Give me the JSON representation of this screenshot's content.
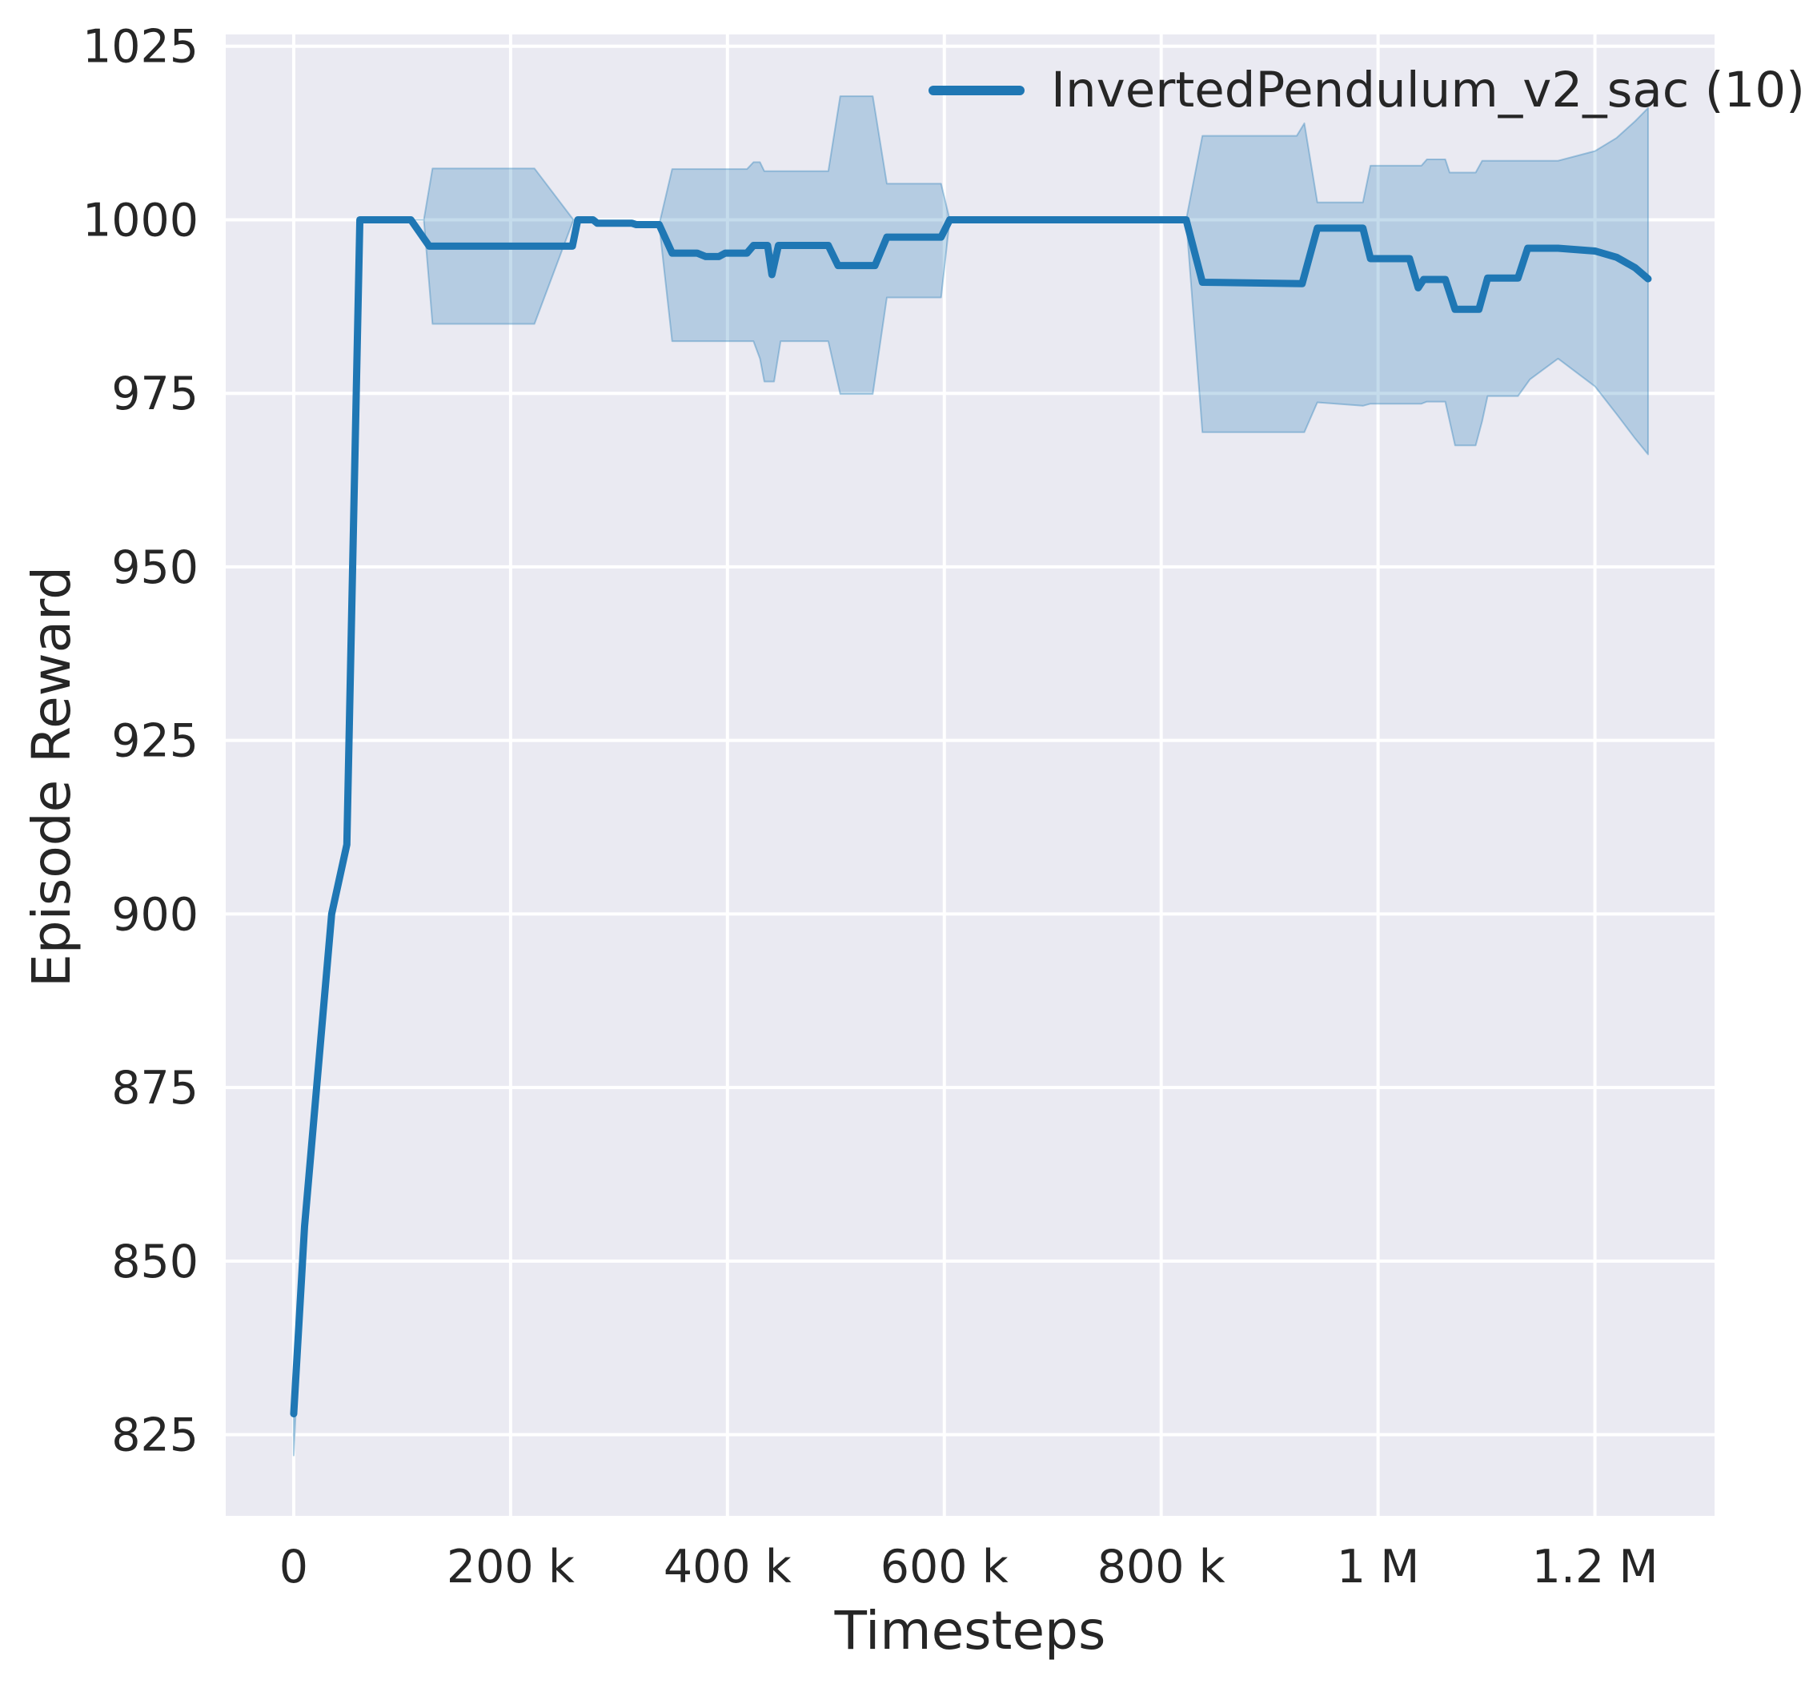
{
  "chart_data": {
    "type": "line",
    "xlabel": "Timesteps",
    "ylabel": "Episode Reward",
    "legend_position": "upper right",
    "grid": true,
    "xlim": [
      -62700,
      1310300
    ],
    "ylim": [
      813.3,
      1026.7
    ],
    "xticks": {
      "values": [
        0,
        200000,
        400000,
        600000,
        800000,
        1000000,
        1200000
      ],
      "labels": [
        "0",
        "200 k",
        "400 k",
        "600 k",
        "800 k",
        "1 M",
        "1.2 M"
      ]
    },
    "yticks": {
      "values": [
        825,
        850,
        875,
        900,
        925,
        950,
        975,
        1000,
        1025
      ],
      "labels": [
        "825",
        "850",
        "875",
        "900",
        "925",
        "950",
        "975",
        "1000",
        "1025"
      ]
    },
    "colors": {
      "plot_bg": "#eaeaf2",
      "grid": "#ffffff",
      "text": "#262626",
      "accent": "#1f77b4"
    },
    "legend": [
      {
        "label": "InvertedPendulum_v2_sac (10)",
        "color": "#1f77b4"
      }
    ],
    "series": [
      {
        "name": "InvertedPendulum_v2_sac (10)",
        "color": "#1f77b4",
        "x": [
          0,
          10000,
          25000,
          35000,
          49000,
          61000,
          108000,
          125000,
          257000,
          262000,
          276000,
          280000,
          312000,
          316000,
          337000,
          349000,
          372000,
          380000,
          392000,
          398000,
          418000,
          424000,
          437000,
          441000,
          447000,
          493000,
          502000,
          536000,
          547000,
          597000,
          605000,
          823000,
          838000,
          930000,
          944000,
          986000,
          993000,
          1029000,
          1037000,
          1042000,
          1062000,
          1071000,
          1093000,
          1101000,
          1129000,
          1138000,
          1166000,
          1200000,
          1220000,
          1237000,
          1249000
        ],
        "y": [
          828,
          855,
          882,
          900,
          910,
          1000,
          1000,
          996.2,
          996.2,
          1000,
          1000,
          999.5,
          999.5,
          999.3,
          999.3,
          995.2,
          995.2,
          994.7,
          994.7,
          995.2,
          995.2,
          996.3,
          996.3,
          992.1,
          996.3,
          996.3,
          993.4,
          993.4,
          997.5,
          997.5,
          1000,
          1000,
          991,
          990.8,
          998.8,
          998.8,
          994.4,
          994.4,
          990.2,
          991.4,
          991.4,
          987.1,
          987.1,
          991.6,
          991.6,
          995.9,
          995.9,
          995.5,
          994.6,
          993.1,
          991.5
        ]
      }
    ],
    "band": {
      "name": "std-band",
      "fill": "rgba(31,119,180,0.26)",
      "edge": "rgba(31,119,180,0.35)",
      "x": [
        0,
        10000,
        25000,
        35000,
        49000,
        61000,
        120000,
        128000,
        222000,
        258000,
        276000,
        280000,
        337000,
        349000,
        418000,
        424000,
        430000,
        434000,
        443000,
        449000,
        493000,
        504000,
        534000,
        547000,
        597000,
        605000,
        823000,
        838000,
        925000,
        932000,
        944000,
        986000,
        993000,
        1040000,
        1045000,
        1062000,
        1066000,
        1071000,
        1090000,
        1096000,
        1101000,
        1129000,
        1140000,
        1166000,
        1200000,
        1220000,
        1237000,
        1249000
      ],
      "upper": [
        833,
        855,
        882,
        900,
        910,
        1000,
        1000,
        1007.4,
        1007.4,
        1000,
        1000,
        999.5,
        999.3,
        1007.3,
        1007.3,
        1008.3,
        1008.3,
        1007,
        1007,
        1007,
        1007,
        1017.8,
        1017.8,
        1005.2,
        1005.2,
        1000,
        1000,
        1012.1,
        1012.1,
        1013.9,
        1002.5,
        1002.5,
        1007.8,
        1007.8,
        1008.7,
        1008.7,
        1006.8,
        1006.8,
        1006.8,
        1008.5,
        1008.5,
        1008.5,
        1008.5,
        1008.5,
        1009.9,
        1011.8,
        1014.2,
        1016.1
      ],
      "lower": [
        822,
        855,
        882,
        900,
        910,
        1000,
        1000,
        985,
        985,
        1000,
        1000,
        999.5,
        999.3,
        982.5,
        982.5,
        982.5,
        980,
        976.7,
        976.7,
        982.5,
        982.5,
        974.9,
        974.9,
        988.8,
        988.8,
        1000,
        1000,
        969.4,
        969.4,
        969.4,
        973.7,
        973.2,
        973.5,
        973.5,
        973.8,
        973.8,
        971,
        967.5,
        967.5,
        971,
        974.6,
        974.6,
        977,
        980,
        976,
        972,
        968.5,
        966.2
      ]
    }
  }
}
